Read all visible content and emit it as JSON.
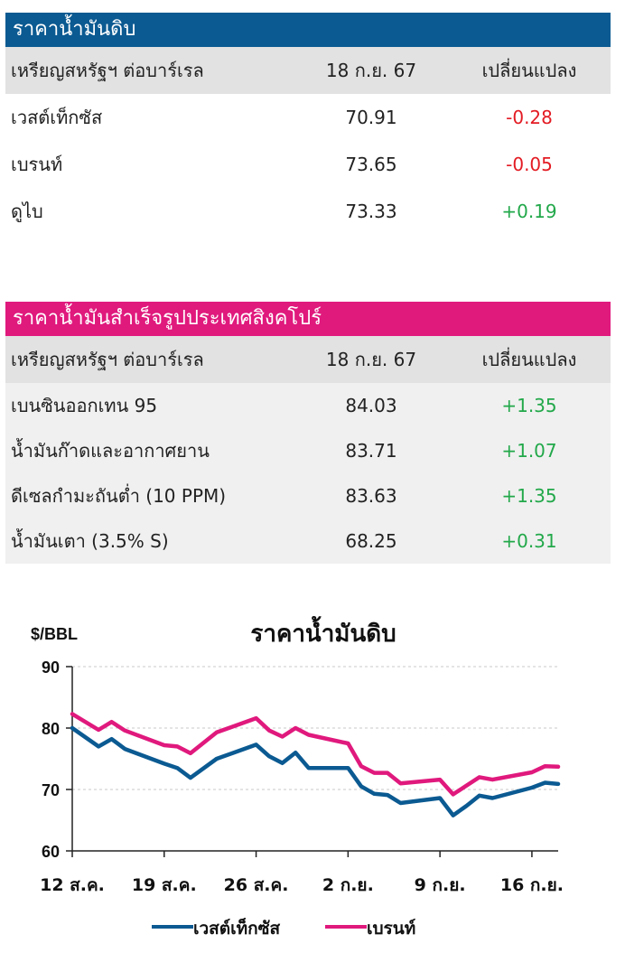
{
  "crude_table": {
    "title": "ราคาน้ำมันดิบ",
    "header_color": "#0b5a92",
    "col_unit": "เหรียญสหรัฐฯ ต่อบาร์เรล",
    "col_date": "18 ก.ย. 67",
    "col_change": "เปลี่ยนแปลง",
    "rows": [
      {
        "name": "เวสต์เท็กซัส",
        "price": "70.91",
        "change": "-0.28"
      },
      {
        "name": "เบรนท์",
        "price": "73.65",
        "change": "-0.05"
      },
      {
        "name": "ดูไบ",
        "price": "73.33",
        "change": "+0.19"
      }
    ]
  },
  "refined_table": {
    "title": "ราคาน้ำมันสำเร็จรูปประเทศสิงคโปร์",
    "header_color": "#e0197d",
    "col_unit": "เหรียญสหรัฐฯ ต่อบาร์เรล",
    "col_date": "18 ก.ย. 67",
    "col_change": "เปลี่ยนแปลง",
    "rows": [
      {
        "name": "เบนซินออกเทน 95",
        "price": "84.03",
        "change": "+1.35"
      },
      {
        "name": "น้ำมันก๊าดและอากาศยาน",
        "price": "83.71",
        "change": "+1.07"
      },
      {
        "name": "ดีเซลกำมะถันต่ำ (10 PPM)",
        "price": "83.63",
        "change": "+1.35"
      },
      {
        "name": "น้ำมันเตา (3.5% S)",
        "price": "68.25",
        "change": "+0.31"
      }
    ]
  },
  "chart_data": {
    "type": "line",
    "title": "ราคาน้ำมันดิบ",
    "ylabel": "$/BBL",
    "ylim": [
      60,
      90
    ],
    "yticks": [
      60,
      70,
      80,
      90
    ],
    "xlim": [
      0,
      37
    ],
    "x_tick_positions": [
      0,
      7,
      14,
      21,
      28,
      35
    ],
    "x_tick_labels": [
      "12 ส.ค.",
      "19 ส.ค.",
      "26 ส.ค.",
      "2 ก.ย.",
      "9 ก.ย.",
      "16 ก.ย."
    ],
    "grid": true,
    "legend": "bottom",
    "x": [
      0,
      2,
      3,
      4,
      7,
      8,
      9,
      11,
      14,
      15,
      16,
      17,
      18,
      21,
      22,
      23,
      24,
      25,
      28,
      29,
      30,
      31,
      32,
      35,
      36,
      37
    ],
    "series": [
      {
        "name": "เวสต์เท็กซัส",
        "color": "#0b5a92",
        "values": [
          80.0,
          77.0,
          78.2,
          76.6,
          74.2,
          73.5,
          71.9,
          75.0,
          77.3,
          75.4,
          74.3,
          76.0,
          73.5,
          73.5,
          70.5,
          69.3,
          69.1,
          67.8,
          68.6,
          65.8,
          67.3,
          69.0,
          68.6,
          70.3,
          71.1,
          70.9
        ]
      },
      {
        "name": "เบรนท์",
        "color": "#e0197d",
        "values": [
          82.3,
          79.7,
          81.0,
          79.6,
          77.2,
          77.0,
          75.9,
          79.3,
          81.6,
          79.6,
          78.6,
          80.0,
          78.9,
          77.5,
          73.8,
          72.7,
          72.7,
          71.0,
          71.6,
          69.2,
          70.6,
          72.0,
          71.6,
          72.8,
          73.8,
          73.7
        ]
      }
    ]
  }
}
